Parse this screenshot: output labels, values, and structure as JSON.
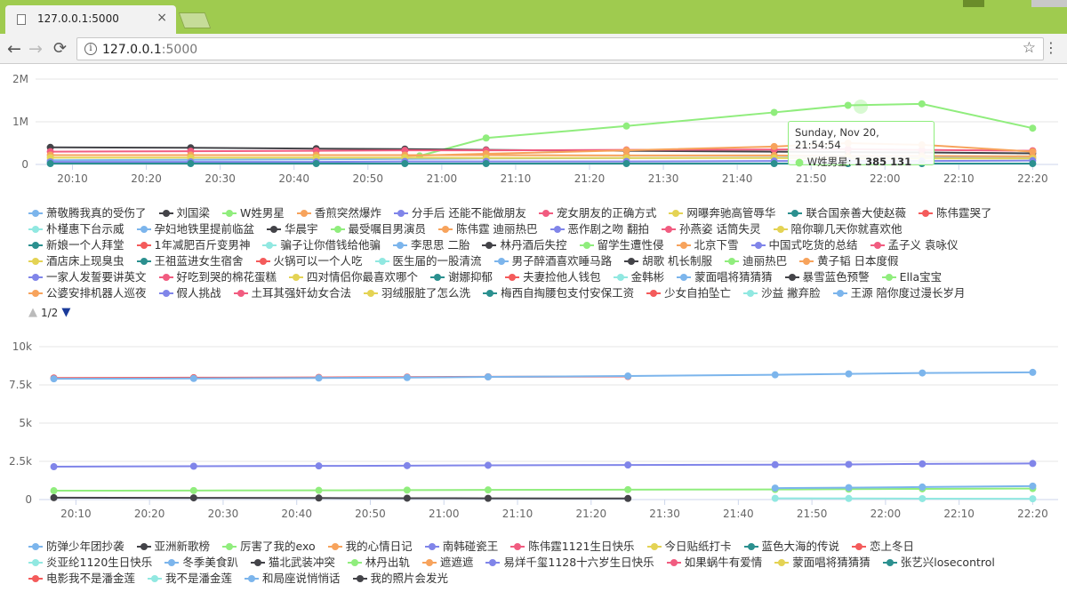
{
  "browser": {
    "tab_title": "127.0.0.1:5000",
    "tab_close": "×",
    "url_host": "127.0.0.1",
    "url_port": ":5000",
    "back": "←",
    "forward": "→",
    "reload": "C",
    "star": "☆",
    "menu": "⋮",
    "info": "i"
  },
  "colors": {
    "titlebar": "#9fcb4f",
    "highlight": "#90ed7d"
  },
  "chart1": {
    "yticks": [
      "2M",
      "1M",
      "0"
    ],
    "xticks": [
      "20:10",
      "20:20",
      "20:30",
      "20:40",
      "20:50",
      "21:00",
      "21:10",
      "21:20",
      "21:30",
      "21:40",
      "21:50",
      "22:00",
      "22:10",
      "22:20"
    ],
    "tooltip": {
      "date": "Sunday, Nov 20, 21:54:54",
      "series": "W姓男星",
      "value": "1 385 131"
    },
    "pager": "1/2",
    "legend_rows": [
      [
        "萧敬腾我真的受伤了",
        "刘国梁",
        "W姓男星",
        "香煎突然爆炸",
        "分手后 还能不能做朋友",
        "宠女朋友的正确方式",
        "网曝奔驰高管辱华",
        "联合国亲善大使赵薇",
        "陈伟霆哭了"
      ],
      [
        "朴槿惠下台示威",
        "孕妇地铁里提前临盆",
        "华晨宇",
        "最受嘱目男演员",
        "陈伟霆 迪丽热巴",
        "恶作剧之吻 翻拍",
        "孙燕姿 话筒失灵",
        "陪你聊几天你就喜欢他"
      ],
      [
        "新娘一个人拜堂",
        "1年减肥百斤变男神",
        "骗子让你借钱给他骗",
        "李思思 二胎",
        "林丹酒后失控",
        "留学生遭性侵",
        "北京下雪",
        "中国式吃货的总结",
        "孟子义 袁咏仪"
      ],
      [
        "酒店床上现臭虫",
        "王祖蓝进女生宿舍",
        "火锅可以一个人吃",
        "医生届的一股清流",
        "男子醉酒喜欢睡马路",
        "胡歌 机长制服",
        "迪丽热巴",
        "黄子韬 日本度假"
      ],
      [
        "一家人发誓要讲英文",
        "好吃到哭的棉花蛋糕",
        "四对情侣你最喜欢哪个",
        "谢娜抑郁",
        "夫妻捡他人钱包",
        "金韩彬",
        "蒙面唱将猜猜猜",
        "暴雪蓝色预警",
        "Ella宝宝"
      ],
      [
        "公婆安排机器人巡夜",
        "假人挑战",
        "土耳其强奸幼女合法",
        "羽绒服脏了怎么洗",
        "梅西自掏腰包支付安保工资",
        "少女自拍坠亡",
        "沙益 撇弃脸",
        "王源 陪你度过漫长岁月"
      ]
    ]
  },
  "chart2": {
    "yticks": [
      "10k",
      "7.5k",
      "5k",
      "2.5k",
      "0"
    ],
    "xticks": [
      "20:10",
      "20:20",
      "20:30",
      "20:40",
      "20:50",
      "21:00",
      "21:10",
      "21:20",
      "21:30",
      "21:40",
      "21:50",
      "22:00",
      "22:10",
      "22:20"
    ],
    "legend_rows": [
      [
        "防弹少年团抄袭",
        "亚洲新歌榜",
        "厉害了我的exo",
        "我的心情日记",
        "南韩碰瓷王",
        "陈伟霆1121生日快乐",
        "今日贴纸打卡",
        "蓝色大海的传说",
        "恋上冬日"
      ],
      [
        "炎亚纶1120生日快乐",
        "冬季美食趴",
        "猫北武装冲突",
        "林丹出轨",
        "遮遮遮",
        "易烊千玺1128十六岁生日快乐",
        "如果蜗牛有爱情",
        "蒙面唱将猜猜猜",
        "张艺兴losecontrol"
      ],
      [
        "电影我不是潘金莲",
        "我不是潘金莲",
        "和局座说悄悄话",
        "我的照片会发光"
      ]
    ]
  },
  "chart_data": [
    {
      "type": "line",
      "ylim": [
        0,
        2000000
      ],
      "x_range": [
        "20:05",
        "22:22"
      ],
      "series_colors": [
        "#7cb5ec",
        "#434348",
        "#90ed7d",
        "#f7a35c",
        "#8085e9",
        "#f15c80",
        "#e4d354",
        "#2b908f",
        "#f45b5b",
        "#91e8e1"
      ],
      "series": [
        {
          "name": "W姓男星",
          "x": [
            "20:57",
            "21:06",
            "21:25",
            "21:45",
            "21:55",
            "22:05",
            "22:20"
          ],
          "values": [
            200000,
            620000,
            900000,
            1220000,
            1385131,
            1420000,
            850000
          ]
        },
        {
          "name": "刘国梁",
          "x": [
            "20:07",
            "20:26",
            "20:43",
            "20:55",
            "21:06",
            "21:25",
            "21:45",
            "21:55",
            "22:05",
            "22:20"
          ],
          "values": [
            400000,
            390000,
            370000,
            360000,
            340000,
            320000,
            300000,
            290000,
            280000,
            260000
          ]
        },
        {
          "name": "陈伟霆哭了",
          "x": [
            "20:07",
            "20:26",
            "20:43",
            "20:55",
            "21:06",
            "21:25",
            "21:45",
            "21:55",
            "22:05",
            "22:20"
          ],
          "values": [
            300000,
            310000,
            320000,
            330000,
            330000,
            340000,
            350000,
            360000,
            340000,
            320000
          ]
        },
        {
          "name": "宠女朋友的正确方式",
          "x": [
            "20:55",
            "21:06",
            "21:25",
            "21:45",
            "21:55",
            "22:05",
            "22:20"
          ],
          "values": [
            200000,
            250000,
            330000,
            420000,
            500000,
            460000,
            300000
          ]
        },
        {
          "name": "萧敬腾我真的受伤了",
          "x": [
            "20:07",
            "20:26",
            "20:43",
            "20:55",
            "21:06",
            "21:25",
            "21:45",
            "21:55",
            "22:05",
            "22:20"
          ],
          "values": [
            100000,
            110000,
            120000,
            130000,
            140000,
            150000,
            160000,
            170000,
            160000,
            150000
          ]
        },
        {
          "name": "香煎突然爆炸",
          "x": [
            "20:07",
            "20:26",
            "20:43",
            "20:55",
            "21:06",
            "21:25",
            "21:45",
            "21:55",
            "22:05",
            "22:20"
          ],
          "values": [
            220000,
            220000,
            220000,
            220000,
            220000,
            210000,
            210000,
            200000,
            200000,
            190000
          ]
        },
        {
          "name": "网曝奔驰高管辱华",
          "x": [
            "20:07",
            "20:26",
            "20:43",
            "20:55",
            "21:06",
            "21:25",
            "21:45",
            "21:55",
            "22:05",
            "22:20"
          ],
          "values": [
            160000,
            160000,
            160000,
            160000,
            150000,
            150000,
            150000,
            140000,
            140000,
            140000
          ]
        },
        {
          "name": "分手后 还能不能做朋友",
          "x": [
            "20:07",
            "20:26",
            "20:43",
            "20:55",
            "21:06",
            "21:25",
            "21:45",
            "21:55",
            "22:05",
            "22:20"
          ],
          "values": [
            60000,
            60000,
            60000,
            70000,
            70000,
            70000,
            80000,
            80000,
            80000,
            90000
          ]
        },
        {
          "name": "联合国亲善大使赵薇",
          "x": [
            "20:07",
            "20:26",
            "20:43",
            "20:55",
            "21:06",
            "21:25",
            "21:45",
            "21:55",
            "22:05",
            "22:20"
          ],
          "values": [
            20000,
            20000,
            20000,
            20000,
            20000,
            20000,
            20000,
            20000,
            20000,
            20000
          ]
        }
      ]
    },
    {
      "type": "line",
      "ylim": [
        0,
        10000
      ],
      "x_range": [
        "20:05",
        "22:22"
      ],
      "series": [
        {
          "name": "陈伟霆1121生日快乐",
          "x": [
            "20:07",
            "20:26",
            "20:43",
            "20:55",
            "21:06",
            "21:25"
          ],
          "values": [
            7950,
            7970,
            7990,
            8010,
            8030,
            8050
          ]
        },
        {
          "name": "防弹少年团抄袭",
          "x": [
            "20:07",
            "20:26",
            "20:43",
            "20:55",
            "21:06",
            "21:25",
            "21:45",
            "21:55",
            "22:05",
            "22:20"
          ],
          "values": [
            7900,
            7920,
            7950,
            7980,
            8020,
            8080,
            8160,
            8220,
            8280,
            8320
          ]
        },
        {
          "name": "南韩碰瓷王",
          "x": [
            "20:07",
            "20:26",
            "20:43",
            "20:55",
            "21:06",
            "21:25",
            "21:45",
            "21:55",
            "22:05",
            "22:20"
          ],
          "values": [
            2150,
            2180,
            2200,
            2220,
            2240,
            2260,
            2280,
            2300,
            2330,
            2360
          ]
        },
        {
          "name": "厉害了我的exo",
          "x": [
            "20:07",
            "20:26",
            "20:43",
            "20:55",
            "21:06",
            "21:25",
            "21:45",
            "21:55",
            "22:05",
            "22:20"
          ],
          "values": [
            580,
            590,
            600,
            620,
            630,
            650,
            660,
            680,
            700,
            720
          ]
        },
        {
          "name": "冬季美食趴",
          "x": [
            "21:45",
            "21:55",
            "22:05",
            "22:20"
          ],
          "values": [
            750,
            780,
            820,
            880
          ]
        },
        {
          "name": "亚洲新歌榜",
          "x": [
            "20:07",
            "20:26",
            "20:43",
            "20:55",
            "21:06",
            "21:25"
          ],
          "values": [
            120,
            110,
            100,
            90,
            80,
            70
          ]
        },
        {
          "name": "炎亚纶1120生日快乐",
          "x": [
            "21:45",
            "21:55",
            "22:05",
            "22:20"
          ],
          "values": [
            80,
            70,
            60,
            50
          ]
        }
      ]
    }
  ]
}
